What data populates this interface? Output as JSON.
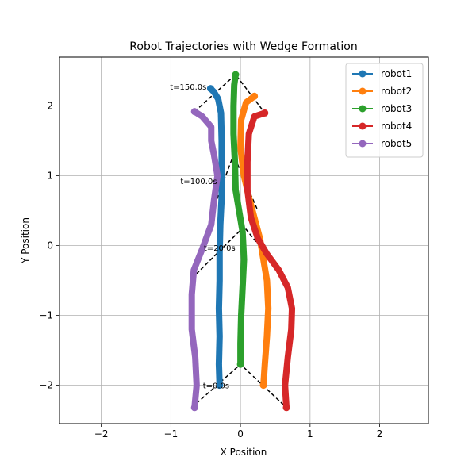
{
  "chart_data": {
    "type": "line",
    "title": "Robot Trajectories with Wedge Formation",
    "xlabel": "X Position",
    "ylabel": "Y Position",
    "xlim": [
      -2.6,
      2.7
    ],
    "ylim": [
      -2.55,
      2.7
    ],
    "xticks": [
      -2,
      -1,
      0,
      1,
      2
    ],
    "yticks": [
      -2,
      -1,
      0,
      1,
      2
    ],
    "xtick_labels": [
      "−2",
      "−1",
      "0",
      "1",
      "2"
    ],
    "ytick_labels": [
      "−2",
      "−1",
      "0",
      "1",
      "2"
    ],
    "grid": true,
    "legend_position": "upper right",
    "series": [
      {
        "name": "robot1",
        "color": "#1f77b4",
        "points": [
          [
            -0.3,
            -2.0
          ],
          [
            -0.31,
            -1.7
          ],
          [
            -0.3,
            -1.3
          ],
          [
            -0.31,
            -0.9
          ],
          [
            -0.3,
            -0.5
          ],
          [
            -0.3,
            -0.1
          ],
          [
            -0.29,
            0.3
          ],
          [
            -0.27,
            0.7
          ],
          [
            -0.27,
            1.1
          ],
          [
            -0.27,
            1.5
          ],
          [
            -0.28,
            1.9
          ],
          [
            -0.32,
            2.1
          ],
          [
            -0.38,
            2.2
          ],
          [
            -0.43,
            2.25
          ]
        ]
      },
      {
        "name": "robot2",
        "color": "#ff7f0e",
        "points": [
          [
            0.33,
            -2.0
          ],
          [
            0.35,
            -1.7
          ],
          [
            0.38,
            -1.3
          ],
          [
            0.4,
            -0.9
          ],
          [
            0.38,
            -0.5
          ],
          [
            0.33,
            -0.2
          ],
          [
            0.28,
            0.1
          ],
          [
            0.2,
            0.4
          ],
          [
            0.12,
            0.7
          ],
          [
            0.05,
            1.0
          ],
          [
            0.0,
            1.4
          ],
          [
            0.01,
            1.8
          ],
          [
            0.08,
            2.05
          ],
          [
            0.2,
            2.14
          ]
        ]
      },
      {
        "name": "robot3",
        "color": "#2ca02c",
        "points": [
          [
            0.0,
            -1.7
          ],
          [
            0.0,
            -1.4
          ],
          [
            0.01,
            -1.0
          ],
          [
            0.03,
            -0.6
          ],
          [
            0.05,
            -0.2
          ],
          [
            0.03,
            0.2
          ],
          [
            -0.02,
            0.5
          ],
          [
            -0.07,
            0.8
          ],
          [
            -0.08,
            1.2
          ],
          [
            -0.1,
            1.6
          ],
          [
            -0.1,
            2.0
          ],
          [
            -0.09,
            2.3
          ],
          [
            -0.07,
            2.45
          ]
        ]
      },
      {
        "name": "robot4",
        "color": "#d62728",
        "points": [
          [
            0.66,
            -2.32
          ],
          [
            0.64,
            -2.0
          ],
          [
            0.68,
            -1.6
          ],
          [
            0.73,
            -1.2
          ],
          [
            0.74,
            -0.9
          ],
          [
            0.68,
            -0.6
          ],
          [
            0.55,
            -0.35
          ],
          [
            0.38,
            -0.12
          ],
          [
            0.25,
            0.1
          ],
          [
            0.15,
            0.4
          ],
          [
            0.1,
            0.8
          ],
          [
            0.1,
            1.2
          ],
          [
            0.12,
            1.6
          ],
          [
            0.2,
            1.85
          ],
          [
            0.35,
            1.9
          ]
        ]
      },
      {
        "name": "robot5",
        "color": "#9467bd",
        "points": [
          [
            -0.66,
            -2.32
          ],
          [
            -0.63,
            -2.0
          ],
          [
            -0.65,
            -1.6
          ],
          [
            -0.7,
            -1.2
          ],
          [
            -0.7,
            -0.7
          ],
          [
            -0.67,
            -0.35
          ],
          [
            -0.55,
            -0.05
          ],
          [
            -0.42,
            0.3
          ],
          [
            -0.38,
            0.65
          ],
          [
            -0.33,
            1.0
          ],
          [
            -0.38,
            1.3
          ],
          [
            -0.42,
            1.5
          ],
          [
            -0.42,
            1.7
          ],
          [
            -0.55,
            1.85
          ],
          [
            -0.66,
            1.92
          ]
        ]
      }
    ],
    "formations": [
      {
        "label": "t=0.0s",
        "vertices": [
          [
            -0.7,
            -2.32
          ],
          [
            0.0,
            -1.7
          ],
          [
            0.66,
            -2.32
          ]
        ],
        "label_at": [
          -0.35,
          -2.0
        ]
      },
      {
        "label": "t=20.0s",
        "vertices": [
          [
            -0.7,
            -0.47
          ],
          [
            0.05,
            0.27
          ],
          [
            0.65,
            -0.47
          ]
        ],
        "label_at": [
          -0.3,
          -0.03
        ]
      },
      {
        "label": "t=100.0s",
        "vertices": [
          [
            -0.4,
            0.5
          ],
          [
            -0.1,
            1.3
          ],
          [
            0.25,
            0.5
          ]
        ],
        "label_at": [
          -0.6,
          0.93
        ]
      },
      {
        "label": "t=150.0s",
        "vertices": [
          [
            -0.66,
            1.92
          ],
          [
            -0.07,
            2.45
          ],
          [
            0.35,
            1.9
          ]
        ],
        "label_at": [
          -0.75,
          2.28
        ]
      }
    ]
  }
}
